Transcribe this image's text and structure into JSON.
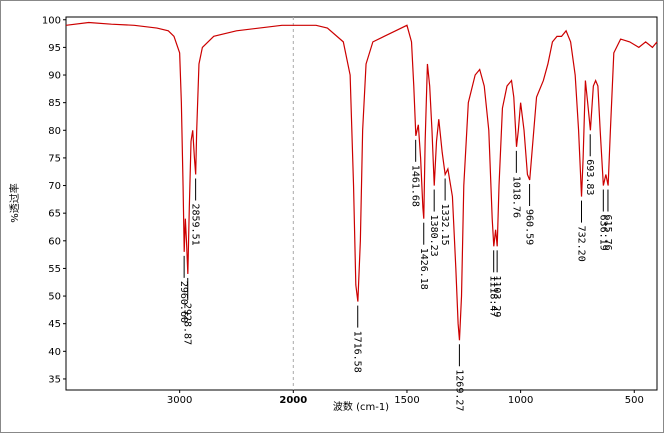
{
  "chart_data": {
    "type": "line",
    "xlabel": "波数 (cm-1)",
    "ylabel": "%透过率",
    "xlim": [
      4000,
      400
    ],
    "x_scale_break": 2000,
    "xticks": [
      3000,
      2000,
      1500,
      1000,
      500
    ],
    "ylim": [
      33,
      100.5
    ],
    "yticks": [
      35,
      40,
      45,
      50,
      55,
      60,
      65,
      70,
      75,
      80,
      85,
      90,
      95,
      100
    ],
    "color": "#cc0000",
    "x": [
      4000,
      3800,
      3600,
      3400,
      3200,
      3100,
      3050,
      3000,
      2985,
      2970,
      2960,
      2950,
      2940,
      2928,
      2915,
      2900,
      2885,
      2870,
      2859,
      2850,
      2830,
      2800,
      2700,
      2500,
      2300,
      2100,
      2000,
      1900,
      1850,
      1780,
      1750,
      1735,
      1725,
      1716,
      1705,
      1695,
      1680,
      1650,
      1600,
      1550,
      1500,
      1480,
      1470,
      1461,
      1450,
      1440,
      1430,
      1426,
      1420,
      1410,
      1400,
      1390,
      1380,
      1370,
      1360,
      1345,
      1332,
      1320,
      1300,
      1285,
      1275,
      1269,
      1260,
      1250,
      1230,
      1200,
      1180,
      1160,
      1140,
      1125,
      1118,
      1110,
      1103,
      1095,
      1080,
      1060,
      1040,
      1030,
      1018,
      1010,
      1000,
      985,
      970,
      960,
      950,
      930,
      900,
      880,
      860,
      840,
      820,
      800,
      780,
      760,
      745,
      732,
      725,
      715,
      705,
      693,
      680,
      670,
      660,
      650,
      636,
      625,
      615,
      605,
      590,
      560,
      520,
      480,
      450,
      420,
      400
    ],
    "values": [
      99,
      99.5,
      99.2,
      99,
      98.5,
      98,
      97,
      94,
      85,
      70,
      58,
      64,
      60,
      54,
      66,
      78,
      80,
      75,
      72,
      80,
      92,
      95,
      97,
      98,
      98.5,
      99,
      99,
      99,
      98.5,
      96,
      90,
      70,
      52,
      49,
      60,
      80,
      92,
      96,
      97,
      98,
      99,
      96,
      88,
      79,
      81,
      75,
      66,
      64,
      78,
      92,
      88,
      80,
      70,
      78,
      82,
      76,
      72,
      73,
      68,
      55,
      45,
      42,
      50,
      70,
      85,
      90,
      91,
      88,
      80,
      64,
      59,
      62,
      59,
      70,
      84,
      88,
      89,
      86,
      77,
      80,
      85,
      80,
      72,
      71,
      76,
      86,
      89,
      92,
      96,
      97,
      97,
      98,
      96,
      90,
      80,
      68,
      75,
      89,
      85,
      80,
      88,
      89,
      88,
      80,
      70,
      72,
      70,
      80,
      94,
      96.5,
      96,
      95,
      96,
      95,
      96
    ],
    "annotations": [
      {
        "x": 2960.6,
        "y": 58,
        "label": "2960.60"
      },
      {
        "x": 2928.87,
        "y": 54,
        "label": "2928.87"
      },
      {
        "x": 2859.51,
        "y": 72,
        "label": "2859.51"
      },
      {
        "x": 1716.58,
        "y": 49,
        "label": "1716.58"
      },
      {
        "x": 1461.68,
        "y": 79,
        "label": "1461.68"
      },
      {
        "x": 1426.18,
        "y": 64,
        "label": "1426.18"
      },
      {
        "x": 1380.23,
        "y": 70,
        "label": "1380.23"
      },
      {
        "x": 1332.15,
        "y": 72,
        "label": "1332.15"
      },
      {
        "x": 1269.27,
        "y": 42,
        "label": "1269.27"
      },
      {
        "x": 1118.47,
        "y": 59,
        "label": "1118.47"
      },
      {
        "x": 1103.29,
        "y": 59,
        "label": "1103.29"
      },
      {
        "x": 1018.76,
        "y": 77,
        "label": "1018.76"
      },
      {
        "x": 960.59,
        "y": 71,
        "label": "960.59"
      },
      {
        "x": 732.2,
        "y": 68,
        "label": "732.20"
      },
      {
        "x": 693.83,
        "y": 80,
        "label": "693.83"
      },
      {
        "x": 636.19,
        "y": 70,
        "label": "636.19"
      },
      {
        "x": 615.76,
        "y": 70,
        "label": "615.76"
      }
    ]
  }
}
